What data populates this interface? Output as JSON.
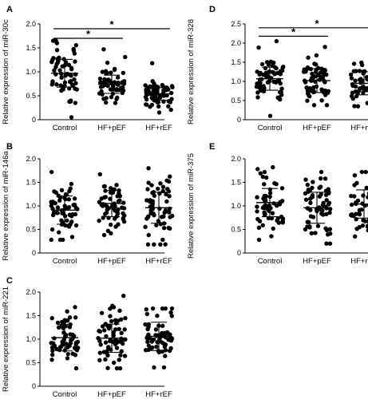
{
  "chart_data": [
    {
      "panel": "A",
      "type": "scatter",
      "ylabel": "Relative expression of miR-30c",
      "categories": [
        "Control",
        "HF+pEF",
        "HF+rEF"
      ],
      "ylim": [
        0,
        2.0
      ],
      "yticks": [
        "0",
        "0.5",
        "1.0",
        "1.5",
        "2.0"
      ],
      "series": [
        {
          "mean": 0.97,
          "sd": 0.29,
          "n": 60,
          "max": 1.65,
          "min": 0.05
        },
        {
          "mean": 0.74,
          "sd": 0.19,
          "n": 60,
          "max": 1.47,
          "min": 0.35
        },
        {
          "mean": 0.54,
          "sd": 0.13,
          "n": 70,
          "max": 1.18,
          "min": 0.15
        }
      ],
      "comparisons": [
        {
          "from": 0,
          "to": 1,
          "label": "*",
          "y": 1.7
        },
        {
          "from": 0,
          "to": 2,
          "label": "*",
          "y": 1.9
        }
      ]
    },
    {
      "panel": "B",
      "type": "scatter",
      "ylabel": "Relative expression of miR-146a",
      "categories": [
        "Control",
        "HF+pEF",
        "HF+rEF"
      ],
      "ylim": [
        0,
        2.0
      ],
      "yticks": [
        "0",
        "0.5",
        "1.0",
        "1.5",
        "2.0"
      ],
      "series": [
        {
          "mean": 0.91,
          "sd": 0.3,
          "n": 60,
          "max": 1.72,
          "min": 0.28
        },
        {
          "mean": 1.05,
          "sd": 0.28,
          "n": 60,
          "max": 1.67,
          "min": 0.38
        },
        {
          "mean": 0.96,
          "sd": 0.33,
          "n": 60,
          "max": 1.8,
          "min": 0.18
        }
      ],
      "comparisons": []
    },
    {
      "panel": "C",
      "type": "scatter",
      "ylabel": "Relative expression of miR-221",
      "categories": [
        "Control",
        "HF+pEF",
        "HF+rEF"
      ],
      "ylim": [
        0,
        2.0
      ],
      "yticks": [
        "0",
        "0.5",
        "1.0",
        "1.5",
        "2.0"
      ],
      "series": [
        {
          "mean": 1.03,
          "sd": 0.28,
          "n": 60,
          "max": 1.68,
          "min": 0.38
        },
        {
          "mean": 1.02,
          "sd": 0.3,
          "n": 65,
          "max": 1.92,
          "min": 0.38
        },
        {
          "mean": 1.06,
          "sd": 0.3,
          "n": 65,
          "max": 1.65,
          "min": 0.4
        }
      ],
      "comparisons": []
    },
    {
      "panel": "D",
      "type": "scatter",
      "ylabel": "Relative expression of miR-328",
      "categories": [
        "Control",
        "HF+pEF",
        "HF+rEF"
      ],
      "ylim": [
        0,
        2.5
      ],
      "yticks": [
        "0",
        "0.5",
        "1.0",
        "1.5",
        "2.0",
        "2.5"
      ],
      "series": [
        {
          "mean": 1.07,
          "sd": 0.3,
          "n": 65,
          "max": 2.05,
          "min": 0.1
        },
        {
          "mean": 1.02,
          "sd": 0.31,
          "n": 65,
          "max": 1.9,
          "min": 0.38
        },
        {
          "mean": 0.95,
          "sd": 0.3,
          "n": 65,
          "max": 1.52,
          "min": 0.35
        }
      ],
      "comparisons": [
        {
          "from": 0,
          "to": 1,
          "label": "*",
          "y": 2.18
        },
        {
          "from": 0,
          "to": 2,
          "label": "*",
          "y": 2.4
        }
      ]
    },
    {
      "panel": "E",
      "type": "scatter",
      "ylabel": "Relative expression of miR-375",
      "categories": [
        "Control",
        "HF+pEF",
        "HF+rEF"
      ],
      "ylim": [
        0,
        2.0
      ],
      "yticks": [
        "0",
        "0.5",
        "1.0",
        "1.5",
        "2.0"
      ],
      "series": [
        {
          "mean": 1.07,
          "sd": 0.3,
          "n": 60,
          "max": 1.82,
          "min": 0.28
        },
        {
          "mean": 0.96,
          "sd": 0.33,
          "n": 65,
          "max": 1.72,
          "min": 0.2
        },
        {
          "mean": 1.04,
          "sd": 0.3,
          "n": 60,
          "max": 1.72,
          "min": 0.35
        }
      ],
      "comparisons": []
    }
  ]
}
